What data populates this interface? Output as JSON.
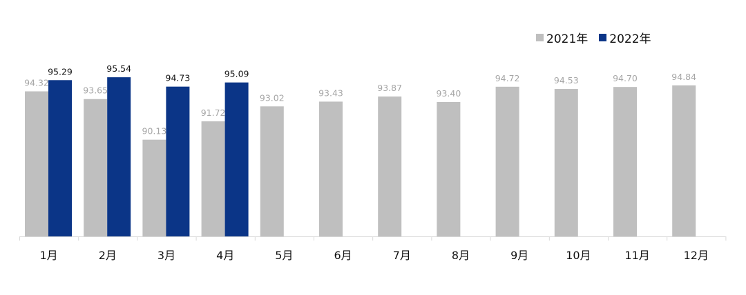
{
  "chart_data": {
    "type": "bar",
    "categories": [
      "1月",
      "2月",
      "3月",
      "4月",
      "5月",
      "6月",
      "7月",
      "8月",
      "9月",
      "10月",
      "11月",
      "12月"
    ],
    "series": [
      {
        "name": "2021年",
        "color": "#bfbfbf",
        "label_color": "#a6a6a6",
        "values": [
          94.32,
          93.65,
          90.13,
          91.72,
          93.02,
          93.43,
          93.87,
          93.4,
          94.72,
          94.53,
          94.7,
          94.84
        ],
        "labels": [
          "94.32",
          "93.65",
          "90.13",
          "91.72",
          "93.02",
          "93.43",
          "93.87",
          "93.40",
          "94.72",
          "94.53",
          "94.70",
          "94.84"
        ]
      },
      {
        "name": "2022年",
        "color": "#0b3587",
        "label_color": "#111111",
        "values": [
          95.29,
          95.54,
          94.73,
          95.09,
          null,
          null,
          null,
          null,
          null,
          null,
          null,
          null
        ],
        "labels": [
          "95.29",
          "95.54",
          "94.73",
          "95.09",
          null,
          null,
          null,
          null,
          null,
          null,
          null,
          null
        ]
      }
    ],
    "legend_position": "top-right",
    "grid": false
  }
}
